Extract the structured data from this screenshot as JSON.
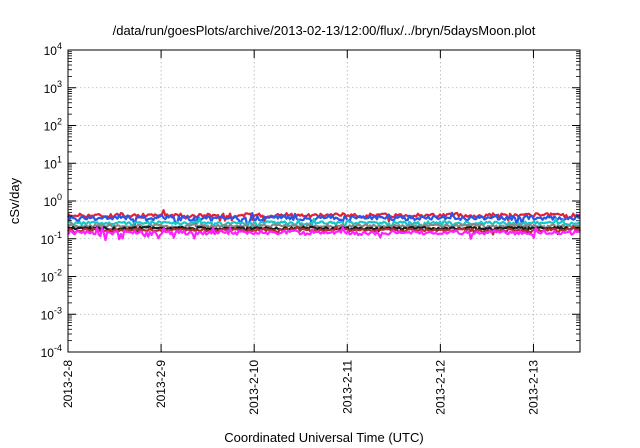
{
  "chart_data": {
    "type": "line",
    "title": "/data/run/goesPlots/archive/2013-02-13/12:00/flux/../bryn/5daysMoon.plot",
    "xlabel": "Coordinated Universal Time (UTC)",
    "ylabel": "cSv/day",
    "yscale": "log",
    "ylim": [
      0.0001,
      10000
    ],
    "xlim": [
      "2013-02-08 00:00",
      "2013-02-13 12:00"
    ],
    "x_ticks": [
      "2013-2-8",
      "2013-2-9",
      "2013-2-10",
      "2013-2-11",
      "2013-2-12",
      "2013-2-13"
    ],
    "y_ticks": [
      {
        "base": "10",
        "exp": "4"
      },
      {
        "base": "10",
        "exp": "3"
      },
      {
        "base": "10",
        "exp": "2"
      },
      {
        "base": "10",
        "exp": "1"
      },
      {
        "base": "10",
        "exp": "0"
      },
      {
        "base": "10",
        "exp": "-1"
      },
      {
        "base": "10",
        "exp": "-2"
      },
      {
        "base": "10",
        "exp": "-3"
      },
      {
        "base": "10",
        "exp": "-4"
      }
    ],
    "grid": true,
    "series": [
      {
        "color": "#e0223a",
        "level": 0.42,
        "noise": 0.12
      },
      {
        "color": "#2a56e6",
        "level": 0.36,
        "noise": 0.14
      },
      {
        "color": "#18c8c8",
        "level": 0.26,
        "noise": 0.1
      },
      {
        "color": "#888888",
        "level": 0.22,
        "noise": 0.08
      },
      {
        "color": "#1a1a1a",
        "level": 0.19,
        "noise": 0.08
      },
      {
        "color": "#b03030",
        "level": 0.17,
        "noise": 0.08
      },
      {
        "color": "#ff22ff",
        "level": 0.145,
        "noise": 0.12
      }
    ]
  }
}
